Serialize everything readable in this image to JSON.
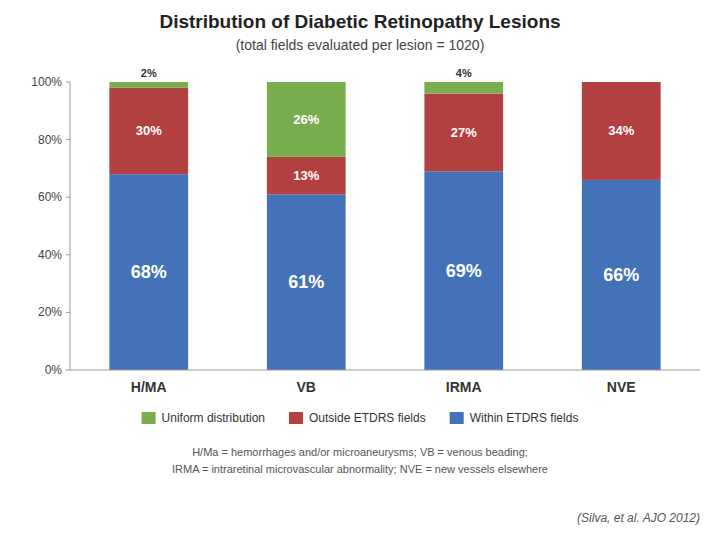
{
  "chart_data": {
    "type": "bar",
    "title": "Distribution of Diabetic Retinopathy Lesions",
    "subtitle": "(total fields evaluated per lesion = 1020)",
    "categories": [
      "H/MA",
      "VB",
      "IRMA",
      "NVE"
    ],
    "stacked": true,
    "data_labels": true,
    "series": [
      {
        "name": "Within ETDRS fields",
        "color": "#4472b8",
        "values": [
          68,
          61,
          69,
          66
        ],
        "value_labels": [
          "68%",
          "61%",
          "69%",
          "66%"
        ]
      },
      {
        "name": "Outside ETDRS fields",
        "color": "#b34040",
        "values": [
          30,
          13,
          27,
          34
        ],
        "value_labels": [
          "30%",
          "13%",
          "27%",
          "34%"
        ]
      },
      {
        "name": "Uniform distribution",
        "color": "#7aad4e",
        "values": [
          2,
          26,
          4,
          0
        ],
        "value_labels": [
          "2%",
          "26%",
          "4%",
          null
        ]
      }
    ],
    "ylim": [
      0,
      100
    ],
    "yticks": [
      {
        "value": 0,
        "label": "0%"
      },
      {
        "value": 20,
        "label": "20%"
      },
      {
        "value": 40,
        "label": "40%"
      },
      {
        "value": 60,
        "label": "60%"
      },
      {
        "value": 80,
        "label": "80%"
      },
      {
        "value": 100,
        "label": "100%"
      }
    ],
    "grid": false,
    "legend": "bottom",
    "annotations": [
      "H/Ma = hemorrhages and/or microaneurysms; VB = venous beading;",
      "IRMA = intraretinal microvascular abnormality; NVE = new vessels elsewhere",
      "(Silva, et al. AJO 2012)"
    ]
  }
}
